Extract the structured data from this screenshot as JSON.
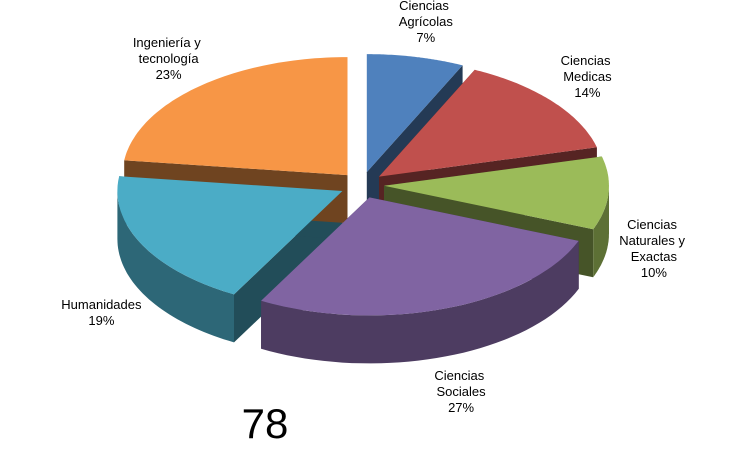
{
  "chart_data": {
    "type": "pie",
    "categories": [
      "Ciencias Agrícolas",
      "Ciencias Medicas",
      "Ciencias Naturales y Exactas",
      "Ciencias Sociales",
      "Humanidades",
      "Ingeniería y tecnología"
    ],
    "values": [
      7,
      14,
      10,
      27,
      19,
      23
    ],
    "value_labels": [
      "7%",
      "14%",
      "10%",
      "27%",
      "19%",
      "23%"
    ],
    "colors": [
      "#4f81bd",
      "#c0504d",
      "#9bbb59",
      "#8064a2",
      "#4bacc6",
      "#f79646"
    ],
    "annotation": "78"
  }
}
